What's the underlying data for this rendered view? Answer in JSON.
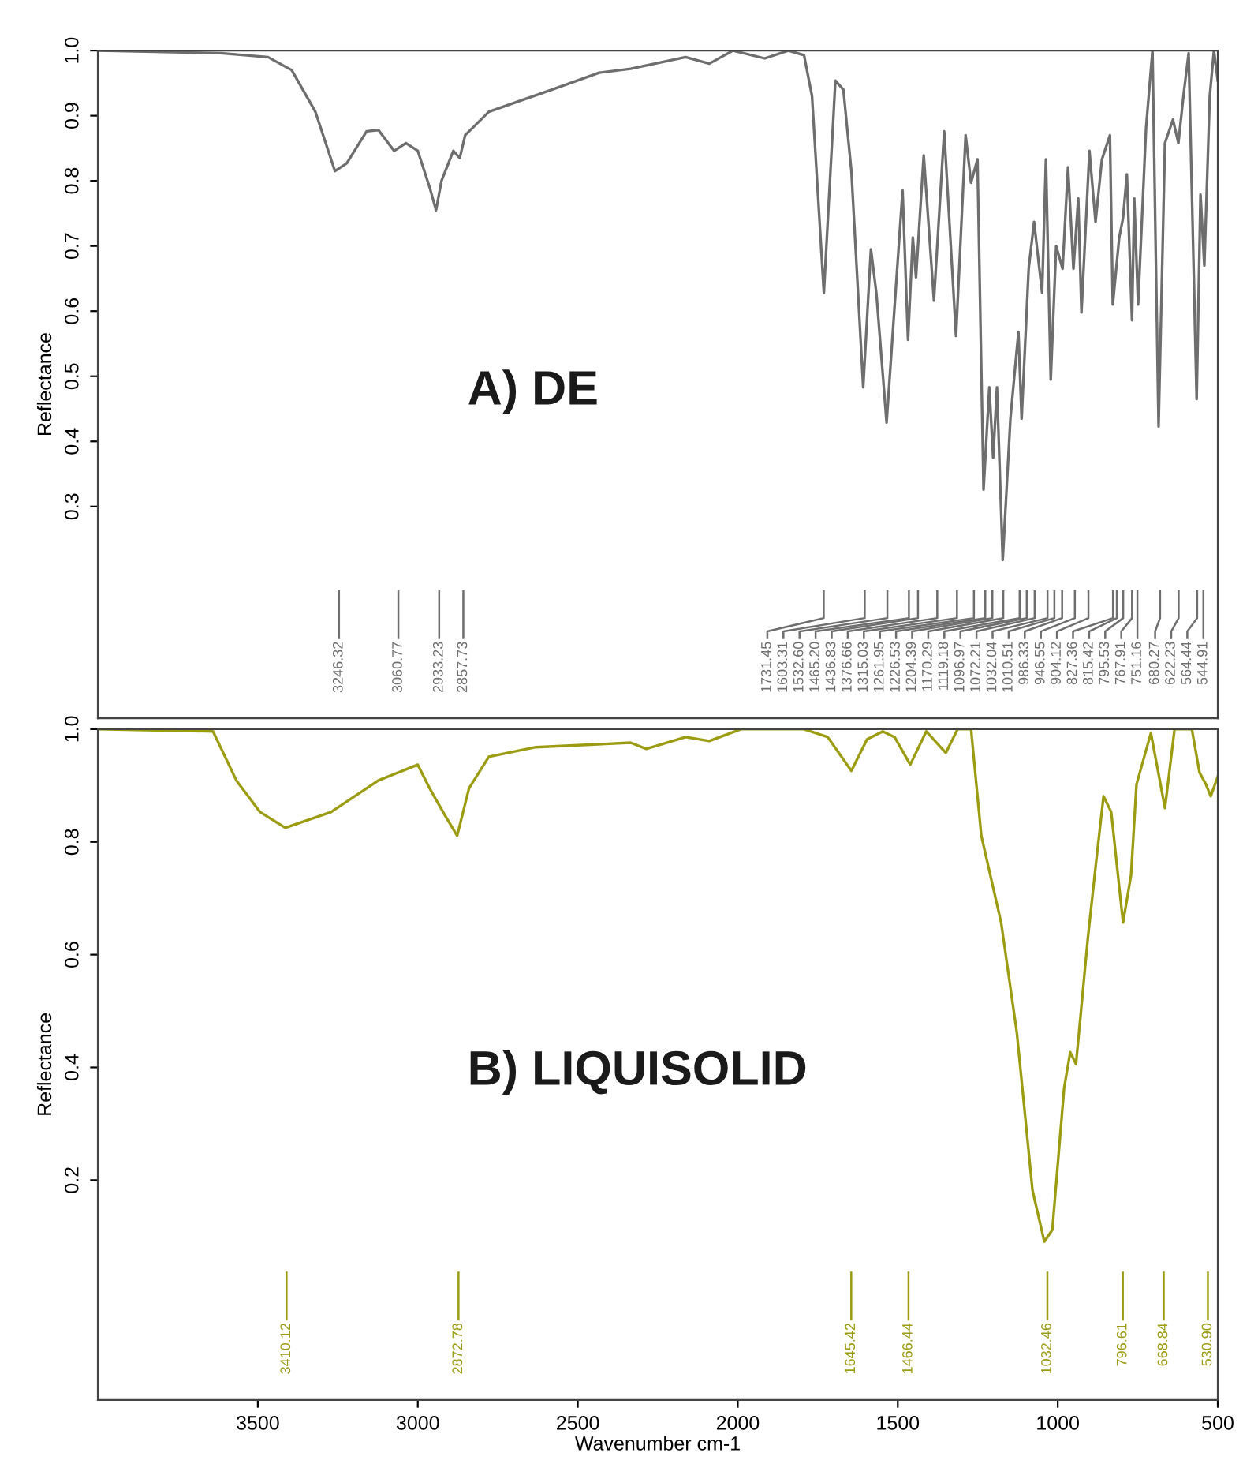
{
  "chart_data": [
    {
      "type": "line",
      "ylabel": "Reflectance",
      "xlim": [
        4000,
        500
      ],
      "ylim": [
        -0.025,
        1.0
      ],
      "yticks": [
        0.3,
        0.4,
        0.5,
        0.6,
        0.7,
        0.8,
        0.9,
        {
          "value": 1.0,
          "label": "1.0"
        }
      ],
      "tick_labels": "y",
      "grid": false,
      "marker": "none",
      "line_style": "solid",
      "series": [
        {
          "color": "#6e6e6e",
          "x": [
            4000,
            3616,
            3468,
            3394,
            3320,
            3259,
            3222,
            3160,
            3123,
            3074,
            3037,
            3000,
            2963,
            2943,
            2926,
            2889,
            2869,
            2852,
            2778,
            2581,
            2433,
            2335,
            2163,
            2089,
            2015,
            1916,
            1842,
            1793,
            1768,
            1731,
            1695,
            1670,
            1645,
            1608,
            1584,
            1567,
            1535,
            1485,
            1468,
            1453,
            1443,
            1419,
            1387,
            1355,
            1318,
            1288,
            1271,
            1251,
            1232,
            1214,
            1202,
            1190,
            1172,
            1148,
            1123,
            1113,
            1091,
            1074,
            1049,
            1037,
            1022,
            1005,
            985,
            968,
            951,
            936,
            926,
            901,
            882,
            862,
            837,
            828,
            808,
            796,
            784,
            768,
            761,
            749,
            724,
            704,
            685,
            665,
            640,
            623,
            606,
            591,
            566,
            554,
            542,
            525,
            512,
            500
          ],
          "values": [
            1.0,
            0.996,
            0.99,
            0.97,
            0.906,
            0.815,
            0.827,
            0.876,
            0.878,
            0.846,
            0.858,
            0.846,
            0.79,
            0.755,
            0.8,
            0.846,
            0.835,
            0.87,
            0.906,
            0.94,
            0.966,
            0.972,
            0.99,
            0.98,
            1.0,
            0.988,
            1.0,
            0.993,
            0.93,
            0.628,
            0.954,
            0.94,
            0.815,
            0.483,
            0.695,
            0.628,
            0.429,
            0.785,
            0.556,
            0.713,
            0.652,
            0.839,
            0.616,
            0.876,
            0.562,
            0.87,
            0.797,
            0.833,
            0.326,
            0.483,
            0.375,
            0.483,
            0.218,
            0.435,
            0.568,
            0.435,
            0.665,
            0.737,
            0.628,
            0.833,
            0.495,
            0.7,
            0.665,
            0.821,
            0.665,
            0.773,
            0.598,
            0.846,
            0.737,
            0.833,
            0.87,
            0.61,
            0.713,
            0.743,
            0.81,
            0.586,
            0.773,
            0.61,
            0.882,
            1.0,
            0.423,
            0.858,
            0.894,
            0.858,
            0.936,
            0.996,
            0.465,
            0.779,
            0.67,
            0.93,
            1.0,
            0.954
          ]
        }
      ],
      "annotations": [
        "A) DE",
        "3246.32",
        "3060.77",
        "2933.23",
        "2857.73",
        "1731.45",
        "1603.31",
        "1532.60",
        "1465.20",
        "1436.83",
        "1376.66",
        "1315.03",
        "1261.95",
        "1226.53",
        "1204.39",
        "1170.29",
        "1119.18",
        "1096.97",
        "1072.21",
        "1032.04",
        "1010.51",
        "986.33",
        "946.55",
        "904.12",
        "827.36",
        "815.42",
        "795.53",
        "767.91",
        "751.16",
        "680.27",
        "622.23",
        "564.44",
        "544.91"
      ]
    },
    {
      "type": "line",
      "xlabel": "Wavenumber cm-1",
      "ylabel": "Reflectance",
      "xlim": [
        4000,
        500
      ],
      "ylim": [
        -0.19,
        1.0
      ],
      "xticks": [
        3500,
        3000,
        2500,
        2000,
        1500,
        1000,
        500
      ],
      "yticks": [
        0.2,
        0.4,
        0.6,
        0.8,
        {
          "value": 1.0,
          "label": "1.0"
        }
      ],
      "grid": false,
      "marker": "none",
      "line_style": "solid",
      "series": [
        {
          "color": "#9c9c12",
          "x": [
            4000,
            3640,
            3567,
            3493,
            3414,
            3271,
            3123,
            3000,
            2963,
            2914,
            2877,
            2840,
            2778,
            2631,
            2335,
            2286,
            2163,
            2089,
            1990,
            1793,
            1719,
            1645,
            1596,
            1547,
            1510,
            1461,
            1411,
            1350,
            1313,
            1271,
            1239,
            1177,
            1128,
            1079,
            1042,
            1017,
            980,
            961,
            943,
            906,
            882,
            857,
            833,
            796,
            771,
            754,
            709,
            665,
            635,
            581,
            557,
            537,
            522,
            500
          ],
          "values": [
            1.0,
            0.996,
            0.909,
            0.853,
            0.825,
            0.853,
            0.909,
            0.937,
            0.895,
            0.846,
            0.811,
            0.895,
            0.951,
            0.968,
            0.976,
            0.965,
            0.986,
            0.979,
            1.0,
            1.0,
            0.986,
            0.926,
            0.982,
            0.996,
            0.986,
            0.937,
            0.996,
            0.958,
            1.0,
            1.0,
            0.811,
            0.657,
            0.462,
            0.182,
            0.091,
            0.112,
            0.364,
            0.427,
            0.406,
            0.629,
            0.755,
            0.881,
            0.853,
            0.657,
            0.741,
            0.902,
            0.993,
            0.86,
            1.0,
            1.0,
            0.923,
            0.902,
            0.881,
            0.916
          ]
        }
      ],
      "annotations": [
        "B) LIQUISOLID",
        "3410.12",
        "2872.78",
        "1645.42",
        "1466.44",
        "1032.46",
        "796.61",
        "668.84",
        "530.90"
      ]
    }
  ]
}
